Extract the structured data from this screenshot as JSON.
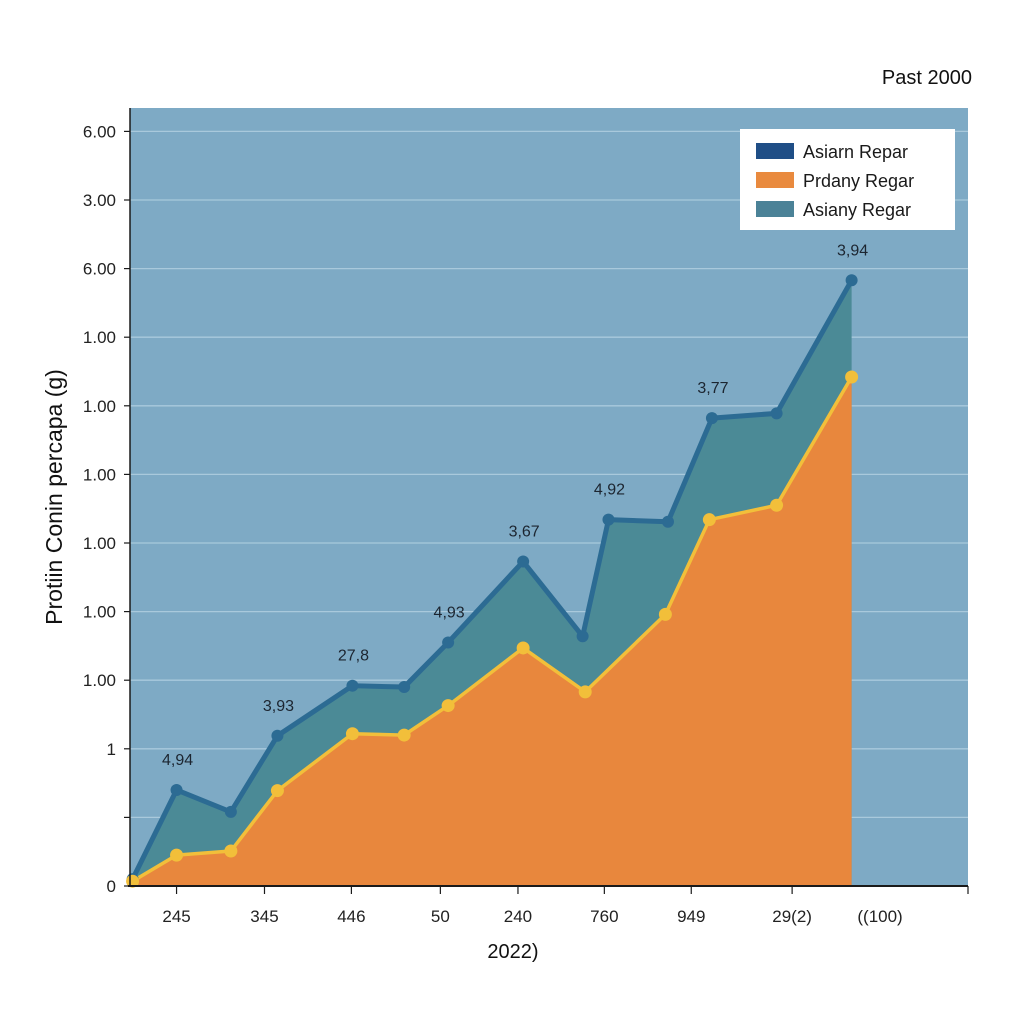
{
  "chart_data": {
    "type": "area",
    "title": "Past 2000",
    "xlabel": "2022)",
    "ylabel": "Protiin Conin percapa (g)",
    "grid": true,
    "legend_position": "top-right",
    "x_tick_labels": [
      "245",
      "345",
      "446",
      "50",
      "240",
      "760",
      "949",
      "29(2)",
      "((100)"
    ],
    "y_tick_labels": [
      "0",
      "",
      "1",
      "1.00",
      "1.00",
      "1.00",
      "1.00",
      "1.00",
      "1.00",
      "6.00",
      "3.00",
      "6.00"
    ],
    "y_range": [
      0,
      11.5
    ],
    "x_range": [
      0,
      16.2
    ],
    "legend": [
      {
        "label": "Asiarn Repar",
        "color": "#1f4e86"
      },
      {
        "label": "Prdany Regar",
        "color": "#e98a3e"
      },
      {
        "label": "Asiany Regar",
        "color": "#4b8297"
      }
    ],
    "series": [
      {
        "name": "Asiany Regar",
        "role": "upper stacked area",
        "fill": "#4b8a96",
        "line": "#2c6b93",
        "x": [
          0.05,
          0.9,
          1.95,
          2.85,
          4.3,
          5.3,
          6.15,
          7.6,
          8.75,
          9.25,
          10.4,
          11.25,
          12.5,
          13.95
        ],
        "values": [
          0.1,
          1.4,
          1.08,
          2.19,
          2.92,
          2.9,
          3.55,
          4.73,
          3.64,
          5.34,
          5.31,
          6.82,
          6.89,
          8.83
        ]
      },
      {
        "name": "Prdany Regar",
        "role": "lower area",
        "fill": "#e8873d",
        "line": "#f2bf3a",
        "x": [
          0.05,
          0.9,
          1.95,
          2.85,
          4.3,
          5.3,
          6.15,
          7.6,
          8.8,
          10.35,
          11.2,
          12.5,
          13.95
        ],
        "values": [
          0.07,
          0.45,
          0.51,
          1.39,
          2.22,
          2.2,
          2.63,
          3.47,
          2.83,
          3.96,
          5.34,
          5.55,
          7.42
        ]
      }
    ],
    "annotations": [
      {
        "text": "4,94",
        "x": 0.9,
        "y": 1.4
      },
      {
        "text": "3,93",
        "x": 2.85,
        "y": 2.19
      },
      {
        "text": "27,8",
        "x": 4.3,
        "y": 2.92
      },
      {
        "text": "4,93",
        "x": 6.15,
        "y": 3.55
      },
      {
        "text": "3,67",
        "x": 7.6,
        "y": 4.73
      },
      {
        "text": "4,92",
        "x": 9.25,
        "y": 5.34
      },
      {
        "text": "3,77",
        "x": 11.25,
        "y": 6.82
      },
      {
        "text": "3,94",
        "x": 13.95,
        "y": 8.83
      }
    ],
    "x_tick_positions": [
      0.9,
      2.6,
      4.28,
      6.0,
      7.5,
      9.17,
      10.85,
      12.8,
      14.5
    ],
    "colors": {
      "plot_background": "#7eaac5",
      "gridline": "#a9c9dc",
      "axis": "#1a1a1a"
    }
  }
}
